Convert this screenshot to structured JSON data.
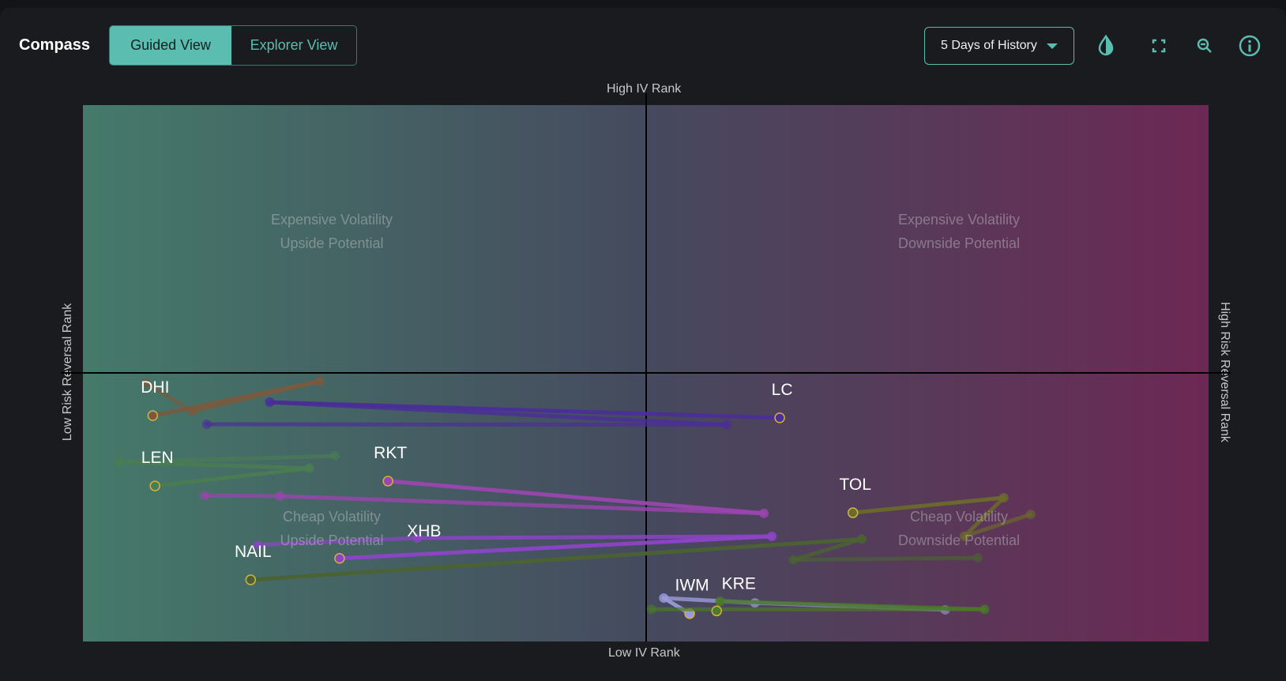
{
  "header": {
    "title": "Compass",
    "view_toggle": {
      "options": [
        "Guided View",
        "Explorer View"
      ],
      "selected": "Guided View"
    },
    "history_select": {
      "value": "5 Days of History"
    },
    "icons": [
      "contrast-drop-icon",
      "fullscreen-icon",
      "zoom-out-icon",
      "info-icon"
    ]
  },
  "colors": {
    "accent": "#5bbcb0",
    "gradient_left": "#457a6a",
    "gradient_mid": "#454a5e",
    "gradient_right": "#6c2854",
    "current_point_outline": "#d4b040"
  },
  "chart_data": {
    "type": "scatter",
    "x_axis": {
      "low_label": "Low Risk Reversal Rank",
      "high_label": "High Risk Reversal Rank",
      "range": [
        0,
        100
      ]
    },
    "y_axis": {
      "low_label": "Low IV Rank",
      "high_label": "High IV Rank",
      "range": [
        0,
        100
      ]
    },
    "quadrants": {
      "top_left": [
        "Expensive Volatility",
        "Upside Potential"
      ],
      "top_right": [
        "Expensive Volatility",
        "Downside Potential"
      ],
      "bottom_left": [
        "Cheap Volatility",
        "Upside Potential"
      ],
      "bottom_right": [
        "Cheap Volatility",
        "Downside Potential"
      ]
    },
    "series": [
      {
        "name": "DHI",
        "color": "#7a5a3e",
        "points": [
          [
            5.6,
            48.2
          ],
          [
            9.7,
            42.9
          ],
          [
            21.0,
            48.5
          ],
          [
            6.2,
            42.1
          ]
        ]
      },
      {
        "name": "LC",
        "color": "#4b2e99",
        "points": [
          [
            11.0,
            40.5
          ],
          [
            57.2,
            40.4
          ],
          [
            16.6,
            44.6
          ],
          [
            61.9,
            41.7
          ]
        ]
      },
      {
        "name": "LEN",
        "color": "#4a7d52",
        "points": [
          [
            22.4,
            34.6
          ],
          [
            3.2,
            33.4
          ],
          [
            20.1,
            32.3
          ],
          [
            6.4,
            29.0
          ]
        ]
      },
      {
        "name": "RKT",
        "color": "#9b45b0",
        "points": [
          [
            10.8,
            27.2
          ],
          [
            17.5,
            27.1
          ],
          [
            60.5,
            23.9
          ],
          [
            27.1,
            29.9
          ]
        ]
      },
      {
        "name": "XHB",
        "color": "#8e44c9",
        "points": [
          [
            15.5,
            18.0
          ],
          [
            29.7,
            19.3
          ],
          [
            61.2,
            19.6
          ],
          [
            22.8,
            15.5
          ]
        ]
      },
      {
        "name": "NAIL",
        "color": "#4b6332",
        "points": [
          [
            79.5,
            15.6
          ],
          [
            63.1,
            15.2
          ],
          [
            69.2,
            19.1
          ],
          [
            14.9,
            11.5
          ]
        ]
      },
      {
        "name": "TOL",
        "color": "#6b6b2a",
        "points": [
          [
            84.2,
            23.7
          ],
          [
            78.3,
            19.6
          ],
          [
            81.8,
            26.8
          ],
          [
            68.4,
            24.0
          ]
        ]
      },
      {
        "name": "IWM",
        "color": "#9a9ad8",
        "points": [
          [
            76.6,
            5.9
          ],
          [
            59.7,
            7.2
          ],
          [
            51.6,
            8.1
          ],
          [
            53.9,
            5.2
          ]
        ]
      },
      {
        "name": "KRE",
        "color": "#4a7a2a",
        "points": [
          [
            50.5,
            6.0
          ],
          [
            80.1,
            6.0
          ],
          [
            56.6,
            7.5
          ],
          [
            56.3,
            5.7
          ]
        ]
      }
    ]
  }
}
